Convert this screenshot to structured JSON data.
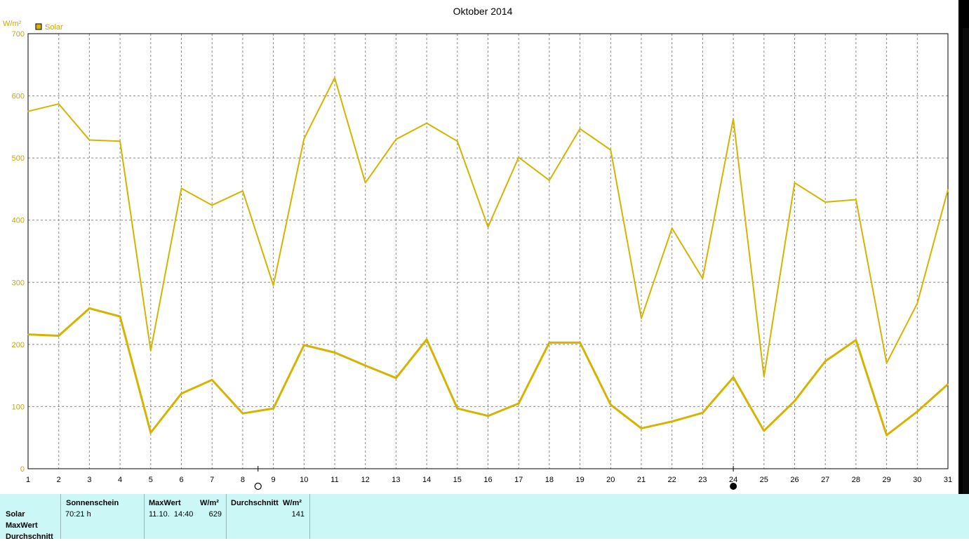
{
  "chart_data": {
    "type": "line",
    "title": "Oktober 2014",
    "ylabel": "W/m²",
    "xlabel": "",
    "ylim": [
      0,
      700
    ],
    "yticks": [
      0,
      100,
      200,
      300,
      400,
      500,
      600,
      700
    ],
    "x": [
      1,
      2,
      3,
      4,
      5,
      6,
      7,
      8,
      9,
      10,
      11,
      12,
      13,
      14,
      15,
      16,
      17,
      18,
      19,
      20,
      21,
      22,
      23,
      24,
      25,
      26,
      27,
      28,
      29,
      30,
      31
    ],
    "grid": true,
    "legend_position": "top-left",
    "legend": [
      "Solar"
    ],
    "series": [
      {
        "role": "max",
        "values": [
          575,
          587,
          529,
          527,
          190,
          451,
          424,
          447,
          295,
          531,
          629,
          460,
          530,
          556,
          527,
          389,
          501,
          464,
          547,
          513,
          242,
          387,
          306,
          563,
          148,
          460,
          429,
          433,
          170,
          266,
          449
        ]
      },
      {
        "role": "average",
        "values": [
          216,
          214,
          258,
          245,
          58,
          121,
          143,
          89,
          97,
          199,
          187,
          166,
          146,
          208,
          97,
          85,
          105,
          203,
          203,
          103,
          65,
          76,
          90,
          147,
          61,
          109,
          173,
          207,
          54,
          92,
          136
        ]
      }
    ],
    "colors": {
      "line": "#d4b400",
      "text": "#c8a800",
      "legend_swatch": "#d4b400"
    },
    "moon_markers": [
      {
        "day": 8.5,
        "phase": "full-moon",
        "symbol": "○"
      },
      {
        "day": 24,
        "phase": "new-moon",
        "symbol": "●"
      }
    ]
  },
  "stats": {
    "rows": [
      "Solar",
      "MaxWert",
      "Durchschnitt"
    ],
    "sunshine": {
      "header": "Sonnenschein",
      "value": "70:21 h"
    },
    "max": {
      "header": "MaxWert",
      "unit": "W/m²",
      "datetime": "11.10.  14:40",
      "value": "629"
    },
    "avg": {
      "header": "Durchschnitt",
      "unit": "W/m²",
      "value": "141"
    }
  }
}
